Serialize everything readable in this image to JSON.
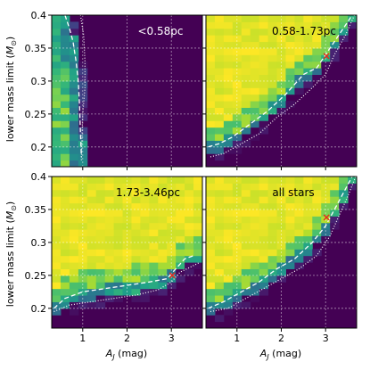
{
  "figure": {
    "ylabel": "lower mass limit (M⊙)",
    "xlabel": "Aⱼ (mag)"
  },
  "chart_data": [
    {
      "type": "heatmap",
      "title": "<0.58pc",
      "xlim": [
        0.3,
        3.7
      ],
      "ylim": [
        0.17,
        0.4
      ],
      "xticks": [
        1,
        2,
        3
      ],
      "yticks": [
        0.2,
        0.25,
        0.3,
        0.35,
        0.4
      ],
      "grid": true,
      "contour_dashed": [
        [
          0.6,
          0.4
        ],
        [
          0.7,
          0.38
        ],
        [
          0.78,
          0.36
        ],
        [
          0.85,
          0.33
        ],
        [
          0.9,
          0.3
        ],
        [
          0.93,
          0.26
        ],
        [
          0.95,
          0.22
        ],
        [
          0.97,
          0.185
        ]
      ],
      "contour_dotted": [
        [
          0.95,
          0.4
        ],
        [
          1.02,
          0.37
        ],
        [
          1.05,
          0.33
        ],
        [
          1.05,
          0.29
        ],
        [
          1.0,
          0.25
        ],
        [
          0.98,
          0.21
        ],
        [
          0.97,
          0.18
        ]
      ],
      "marker": null
    },
    {
      "type": "heatmap",
      "title": "0.58-1.73pc",
      "xlim": [
        0.3,
        3.7
      ],
      "ylim": [
        0.17,
        0.4
      ],
      "xticks": [
        1,
        2,
        3
      ],
      "yticks": [
        0.2,
        0.25,
        0.3,
        0.35,
        0.4
      ],
      "grid": true,
      "contour_dashed": [
        [
          0.35,
          0.2
        ],
        [
          0.6,
          0.205
        ],
        [
          0.9,
          0.215
        ],
        [
          1.3,
          0.235
        ],
        [
          1.7,
          0.255
        ],
        [
          2.1,
          0.28
        ],
        [
          2.5,
          0.31
        ],
        [
          2.8,
          0.32
        ],
        [
          3.0,
          0.34
        ],
        [
          3.2,
          0.36
        ],
        [
          3.4,
          0.38
        ],
        [
          3.6,
          0.4
        ]
      ],
      "contour_dotted": [
        [
          0.4,
          0.185
        ],
        [
          0.7,
          0.19
        ],
        [
          1.1,
          0.205
        ],
        [
          1.5,
          0.22
        ],
        [
          1.9,
          0.245
        ],
        [
          2.3,
          0.265
        ],
        [
          2.7,
          0.29
        ],
        [
          3.0,
          0.31
        ],
        [
          3.2,
          0.34
        ],
        [
          3.45,
          0.37
        ],
        [
          3.65,
          0.4
        ]
      ],
      "marker": {
        "x": 3.02,
        "y": 0.338
      }
    },
    {
      "type": "heatmap",
      "title": "1.73-3.46pc",
      "xlim": [
        0.3,
        3.7
      ],
      "ylim": [
        0.17,
        0.4
      ],
      "xticks": [
        1,
        2,
        3
      ],
      "yticks": [
        0.2,
        0.25,
        0.3,
        0.35,
        0.4
      ],
      "grid": true,
      "contour_dashed": [
        [
          0.35,
          0.2
        ],
        [
          0.6,
          0.215
        ],
        [
          1.0,
          0.225
        ],
        [
          1.5,
          0.23
        ],
        [
          2.0,
          0.235
        ],
        [
          2.5,
          0.24
        ],
        [
          2.9,
          0.245
        ],
        [
          3.1,
          0.26
        ],
        [
          3.3,
          0.275
        ],
        [
          3.5,
          0.28
        ]
      ],
      "contour_dotted": [
        [
          0.35,
          0.195
        ],
        [
          0.7,
          0.205
        ],
        [
          1.2,
          0.21
        ],
        [
          1.7,
          0.215
        ],
        [
          2.2,
          0.22
        ],
        [
          2.7,
          0.228
        ],
        [
          3.0,
          0.24
        ],
        [
          3.2,
          0.255
        ],
        [
          3.5,
          0.265
        ],
        [
          3.65,
          0.27
        ]
      ],
      "marker": {
        "x": 3.02,
        "y": 0.25
      }
    },
    {
      "type": "heatmap",
      "title": "all stars",
      "xlim": [
        0.3,
        3.7
      ],
      "ylim": [
        0.17,
        0.4
      ],
      "xticks": [
        1,
        2,
        3
      ],
      "yticks": [
        0.2,
        0.25,
        0.3,
        0.35,
        0.4
      ],
      "grid": true,
      "contour_dashed": [
        [
          0.35,
          0.2
        ],
        [
          0.7,
          0.21
        ],
        [
          1.1,
          0.225
        ],
        [
          1.5,
          0.24
        ],
        [
          1.9,
          0.26
        ],
        [
          2.3,
          0.275
        ],
        [
          2.7,
          0.3
        ],
        [
          3.0,
          0.325
        ],
        [
          3.2,
          0.35
        ],
        [
          3.4,
          0.375
        ],
        [
          3.6,
          0.4
        ]
      ],
      "contour_dotted": [
        [
          0.4,
          0.195
        ],
        [
          0.8,
          0.2
        ],
        [
          1.2,
          0.215
        ],
        [
          1.6,
          0.23
        ],
        [
          2.0,
          0.245
        ],
        [
          2.4,
          0.26
        ],
        [
          2.8,
          0.28
        ],
        [
          3.1,
          0.31
        ],
        [
          3.3,
          0.34
        ],
        [
          3.5,
          0.37
        ],
        [
          3.68,
          0.4
        ]
      ],
      "marker": {
        "x": 3.02,
        "y": 0.338
      }
    }
  ]
}
